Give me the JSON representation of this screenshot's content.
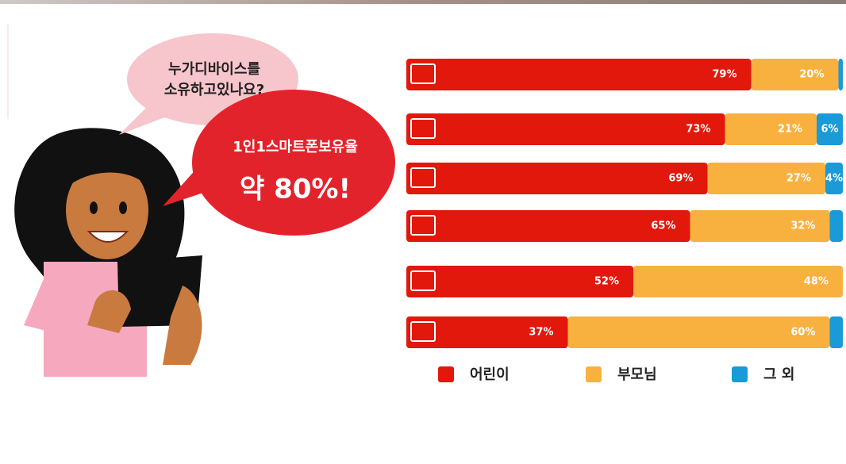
{
  "chart_data": {
    "type": "stacked-bar",
    "orientation": "horizontal",
    "annotations": [
      "누가디바이스를",
      "소유하고있나요?",
      "1인1스마트폰보유율",
      "약 80%!"
    ],
    "categories": [
      null,
      null,
      null,
      null,
      null,
      null
    ],
    "xlim": [
      0,
      100
    ],
    "legend": "bottom",
    "series": [
      {
        "name": "어린이",
        "color": "#e2180c",
        "values": [
          79,
          73,
          69,
          65,
          52,
          37
        ],
        "value_labels": [
          "79%",
          "73%",
          "69%",
          "65%",
          "52%",
          "37%"
        ]
      },
      {
        "name": "부모님",
        "color": "#f8b13f",
        "values": [
          20,
          21,
          27,
          32,
          48,
          60
        ],
        "value_labels": [
          "20%",
          "21%",
          "27%",
          "32%",
          "48%",
          "60%"
        ]
      },
      {
        "name": "그 외",
        "color": "#1a9ad6",
        "values": [
          1,
          6,
          4,
          3,
          0,
          3
        ],
        "value_labels": [
          null,
          "6%",
          "4%",
          null,
          null,
          null
        ]
      }
    ]
  }
}
